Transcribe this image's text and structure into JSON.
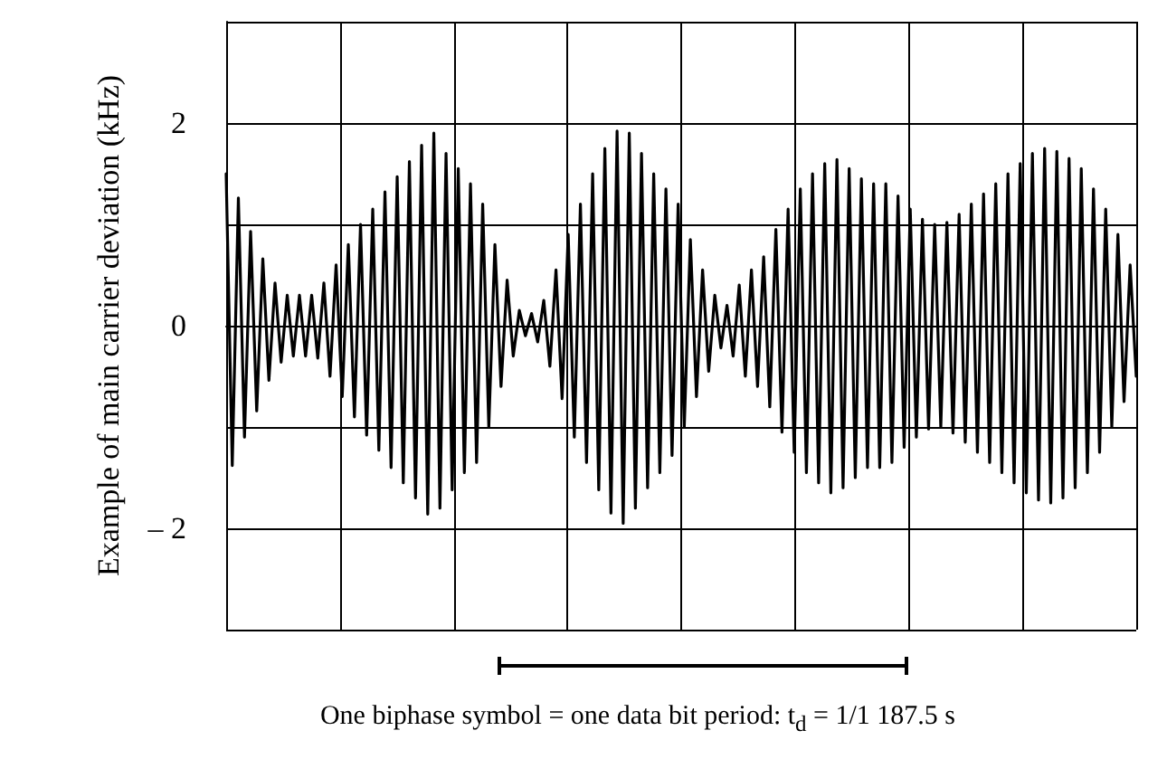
{
  "chart_data": {
    "type": "line",
    "ylabel": "Example of main carrier deviation (kHz)",
    "categories": [
      null,
      null,
      null,
      null,
      null,
      null,
      null,
      null,
      null,
      null,
      null,
      null,
      null,
      null,
      null,
      null,
      null,
      null,
      null,
      null,
      null,
      null,
      null,
      null,
      null,
      null,
      null,
      null,
      null,
      null,
      null,
      null,
      null,
      null,
      null,
      null,
      null,
      null,
      null,
      null,
      null,
      null,
      null,
      null,
      null,
      null,
      null,
      null,
      null,
      null,
      null,
      null,
      null,
      null,
      null,
      null,
      null,
      null,
      null,
      null,
      null,
      null,
      null,
      null,
      null,
      null,
      null,
      null,
      null,
      null,
      null,
      null,
      null,
      null,
      null,
      null,
      null,
      null,
      null,
      null,
      null,
      null,
      null,
      null,
      null,
      null,
      null,
      null,
      null,
      null,
      null,
      null,
      null,
      null,
      null,
      null,
      null,
      null,
      null,
      null,
      null,
      null,
      null,
      null,
      null,
      null,
      null,
      null,
      null,
      null,
      null,
      null,
      null,
      null,
      null,
      null,
      null,
      null,
      null,
      null,
      null,
      null,
      null,
      null,
      null,
      null,
      null,
      null,
      null,
      null,
      null,
      null,
      null,
      null,
      null,
      null,
      null,
      null,
      null,
      null,
      null,
      null,
      null,
      null,
      null,
      null,
      null,
      null,
      null,
      null
    ],
    "series": [
      {
        "color": "#000000",
        "values": [
          1.5,
          -1.38,
          1.26,
          -1.1,
          0.93,
          -0.84,
          0.66,
          -0.54,
          0.42,
          -0.36,
          0.3,
          -0.3,
          0.3,
          -0.3,
          0.3,
          -0.32,
          0.42,
          -0.5,
          0.6,
          -0.7,
          0.8,
          -0.9,
          1.0,
          -1.08,
          1.15,
          -1.23,
          1.32,
          -1.4,
          1.47,
          -1.55,
          1.62,
          -1.7,
          1.78,
          -1.86,
          1.9,
          -1.8,
          1.7,
          -1.62,
          1.55,
          -1.45,
          1.4,
          -1.35,
          1.2,
          -1.0,
          0.8,
          -0.6,
          0.45,
          -0.3,
          0.15,
          -0.1,
          0.12,
          -0.16,
          0.25,
          -0.4,
          0.55,
          -0.72,
          0.9,
          -1.1,
          1.2,
          -1.35,
          1.5,
          -1.62,
          1.75,
          -1.85,
          1.92,
          -1.95,
          1.9,
          -1.8,
          1.7,
          -1.6,
          1.5,
          -1.45,
          1.35,
          -1.28,
          1.2,
          -1.0,
          0.85,
          -0.7,
          0.55,
          -0.45,
          0.3,
          -0.22,
          0.2,
          -0.3,
          0.4,
          -0.5,
          0.55,
          -0.6,
          0.68,
          -0.8,
          0.95,
          -1.05,
          1.15,
          -1.25,
          1.35,
          -1.45,
          1.5,
          -1.55,
          1.6,
          -1.65,
          1.64,
          -1.6,
          1.55,
          -1.5,
          1.45,
          -1.4,
          1.4,
          -1.4,
          1.4,
          -1.35,
          1.28,
          -1.2,
          1.15,
          -1.1,
          1.05,
          -1.02,
          1.0,
          -1.0,
          1.02,
          -1.06,
          1.1,
          -1.15,
          1.2,
          -1.25,
          1.3,
          -1.35,
          1.4,
          -1.45,
          1.5,
          -1.55,
          1.6,
          -1.65,
          1.7,
          -1.72,
          1.75,
          -1.75,
          1.72,
          -1.7,
          1.65,
          -1.6,
          1.55,
          -1.45,
          1.35,
          -1.25,
          1.15,
          -1.0,
          0.9,
          -0.75,
          0.6,
          -0.5
        ]
      }
    ],
    "ylim": [
      -3,
      3
    ],
    "yticks": [
      {
        "value": -3,
        "label": null
      },
      {
        "value": -2,
        "label": "– 2"
      },
      {
        "value": -1,
        "label": null
      },
      {
        "value": 0,
        "label": "0"
      },
      {
        "value": 1,
        "label": null
      },
      {
        "value": 2,
        "label": "2"
      },
      {
        "value": 3,
        "label": null
      }
    ],
    "grid": true,
    "marker": "none",
    "line_style": "solid",
    "tick_labels": "y",
    "annotations": [
      "One biphase symbol = one data bit period: t$_{d}$ = 1/1 187.5 s"
    ]
  }
}
